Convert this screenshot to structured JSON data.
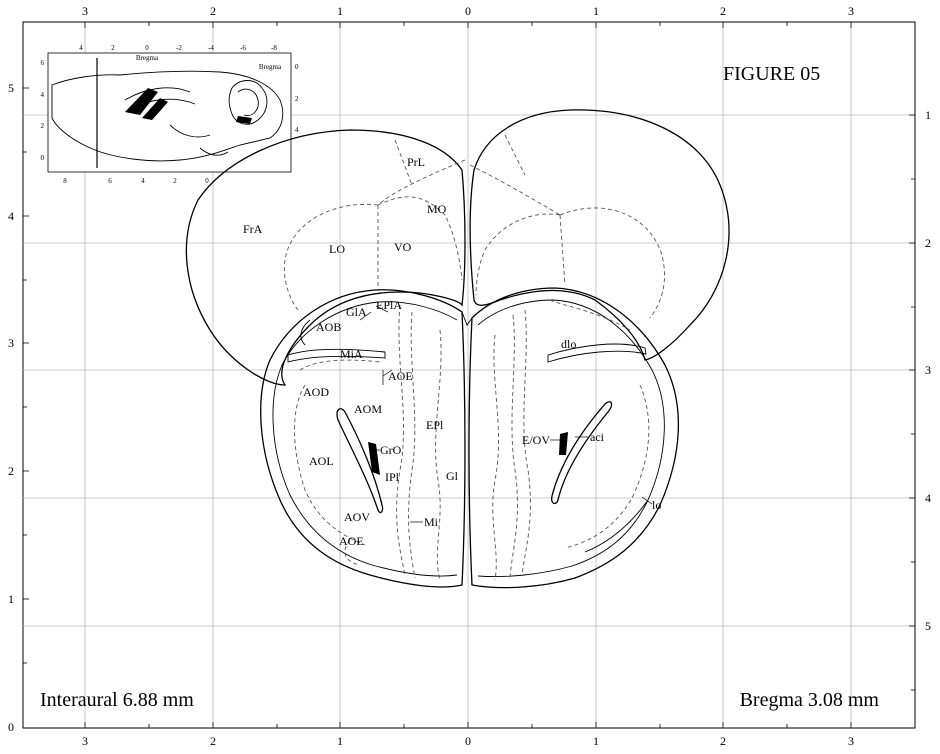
{
  "figure": {
    "title": "FIGURE 05",
    "interaural": "Interaural 6.88 mm",
    "bregma": "Bregma 3.08 mm"
  },
  "axes": {
    "top_ticks": [
      "3",
      "2",
      "1",
      "0",
      "1",
      "2",
      "3"
    ],
    "bottom_ticks": [
      "3",
      "2",
      "1",
      "0",
      "1",
      "2",
      "3"
    ],
    "left_ticks": [
      "5",
      "4",
      "3",
      "2",
      "1",
      "0"
    ],
    "right_ticks": [
      "1",
      "2",
      "3",
      "4",
      "5"
    ]
  },
  "inset": {
    "bregma_top": "Bregma",
    "bregma_right": "Bregma",
    "top_ticks": [
      "4",
      "2",
      "0",
      "-2",
      "-4",
      "-6",
      "-8"
    ],
    "bottom_ticks": [
      "8",
      "6",
      "4",
      "2",
      "0"
    ],
    "left_ticks": [
      "6",
      "4",
      "2",
      "0"
    ],
    "right_ticks": [
      "0",
      "2",
      "4"
    ]
  },
  "regions": {
    "frA": "FrA",
    "prL": "PrL",
    "mo": "MO",
    "lo": "LO",
    "vo": "VO",
    "glA": "GlA",
    "eplA": "EPlA",
    "aob": "AOB",
    "miA": "MiA",
    "aoe_upper": "AOE",
    "aod": "AOD",
    "aom": "AOM",
    "epl": "EPl",
    "aol": "AOL",
    "grO": "GrO",
    "ipl": "IPl",
    "gl": "Gl",
    "aov": "AOV",
    "mi": "Mi",
    "aoe_lower": "AOE",
    "dlo": "dlo",
    "e_ov": "E/OV",
    "aci": "aci",
    "lo_tract": "lo"
  }
}
